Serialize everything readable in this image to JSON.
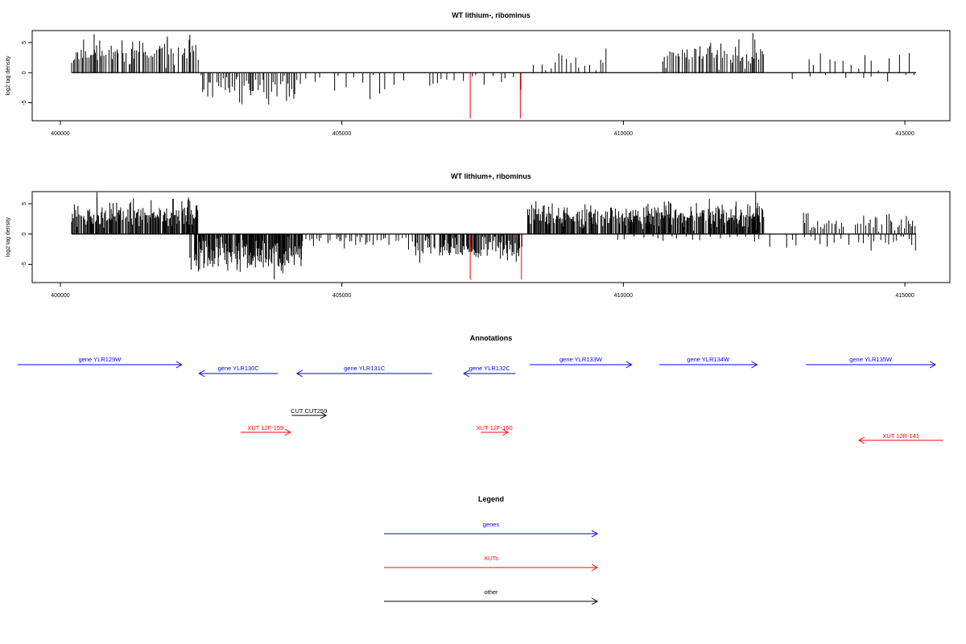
{
  "chart_data": [
    {
      "type": "bar",
      "title": "WT lithium-, ribominus",
      "ylabel": "log2 tag density",
      "xlim": [
        399500,
        415800
      ],
      "ylim": [
        -8,
        7
      ],
      "x_ticks": [
        400000,
        405000,
        410000,
        415000
      ],
      "x_tick_labels": [
        "400000",
        "405000",
        "410000",
        "415000"
      ],
      "y_ticks": [
        -5,
        0,
        5
      ],
      "y_tick_labels": [
        "-5",
        "0",
        "5"
      ],
      "baseline": {
        "x": [
          400200,
          415200
        ],
        "y": 0
      },
      "series": [
        {
          "color": "#000000",
          "segments": [
            {
              "strand": "+",
              "from": 400200,
              "to": 402450,
              "mean": 3.3,
              "spread": 1.3,
              "step": 28,
              "seed": 11
            },
            {
              "strand": "-",
              "from": 402500,
              "to": 404200,
              "mean": -2.6,
              "spread": 1.5,
              "step": 30,
              "seed": 12
            },
            {
              "strand": "-",
              "from": 404200,
              "to": 408200,
              "mean": -1.6,
              "spread": 1.4,
              "step": 115,
              "seed": 13
            },
            {
              "strand": "+",
              "from": 408400,
              "to": 409700,
              "mean": 2.0,
              "spread": 1.2,
              "step": 75,
              "seed": 14
            },
            {
              "strand": "+",
              "from": 410700,
              "to": 412500,
              "mean": 3.0,
              "spread": 1.3,
              "step": 30,
              "seed": 15
            },
            {
              "strand": "+",
              "from": 413300,
              "to": 415200,
              "mean": 1.8,
              "spread": 1.0,
              "step": 135,
              "seed": 16
            },
            {
              "strand": "-",
              "from": 413000,
              "to": 415200,
              "mean": -1.0,
              "spread": 0.5,
              "step": 260,
              "seed": 17
            }
          ],
          "bars": [
            {
              "x": 400600,
              "y": 6.4
            },
            {
              "x": 401900,
              "y": 6.0
            },
            {
              "x": 402300,
              "y": 6.3
            },
            {
              "x": 403700,
              "y": -5.3
            },
            {
              "x": 412300,
              "y": 6.6
            },
            {
              "x": 413500,
              "y": 3.2
            }
          ]
        },
        {
          "color": "#ff0000",
          "bars": [
            {
              "x": 407280,
              "y": -7.6
            },
            {
              "x": 408170,
              "y": -7.6
            }
          ]
        }
      ]
    },
    {
      "type": "bar",
      "title": "WT lithium+, ribominus",
      "ylabel": "log2 tag density",
      "xlim": [
        399500,
        415800
      ],
      "ylim": [
        -8,
        7
      ],
      "x_ticks": [
        400000,
        405000,
        410000,
        415000
      ],
      "x_tick_labels": [
        "400000",
        "405000",
        "410000",
        "415000"
      ],
      "y_ticks": [
        -5,
        0,
        5
      ],
      "y_tick_labels": [
        "-5",
        "0",
        "5"
      ],
      "baseline": {
        "x": [
          400200,
          415200
        ],
        "y": 0
      },
      "series": [
        {
          "color": "#000000",
          "segments": [
            {
              "strand": "+",
              "from": 400200,
              "to": 402450,
              "mean": 3.4,
              "spread": 1.3,
              "step": 14,
              "seed": 21
            },
            {
              "strand": "-",
              "from": 402300,
              "to": 404300,
              "mean": -3.5,
              "spread": 1.8,
              "step": 12,
              "seed": 22
            },
            {
              "strand": "-",
              "from": 404300,
              "to": 406300,
              "mean": -1.2,
              "spread": 0.7,
              "step": 50,
              "seed": 23
            },
            {
              "strand": "-",
              "from": 406300,
              "to": 408200,
              "mean": -2.5,
              "spread": 1.2,
              "step": 16,
              "seed": 24
            },
            {
              "strand": "+",
              "from": 408300,
              "to": 409800,
              "mean": 3.0,
              "spread": 1.2,
              "step": 14,
              "seed": 25
            },
            {
              "strand": "+",
              "from": 409800,
              "to": 412500,
              "mean": 3.1,
              "spread": 1.3,
              "step": 13,
              "seed": 26
            },
            {
              "strand": "-",
              "from": 409900,
              "to": 412600,
              "mean": -0.8,
              "spread": 0.4,
              "step": 130,
              "seed": 27
            },
            {
              "strand": "+",
              "from": 413200,
              "to": 415200,
              "mean": 1.9,
              "spread": 1.0,
              "step": 38,
              "seed": 28
            },
            {
              "strand": "-",
              "from": 412900,
              "to": 415200,
              "mean": -1.2,
              "spread": 0.8,
              "step": 85,
              "seed": 29
            }
          ],
          "bars": [
            {
              "x": 400650,
              "y": 6.9
            },
            {
              "x": 402300,
              "y": 5.5
            },
            {
              "x": 403800,
              "y": -7.5
            },
            {
              "x": 412350,
              "y": 6.9
            },
            {
              "x": 412600,
              "y": -2.1
            }
          ]
        },
        {
          "color": "#ff0000",
          "bars": [
            {
              "x": 407280,
              "y": -7.5
            },
            {
              "x": 408190,
              "y": -7.5
            }
          ]
        }
      ]
    }
  ],
  "annotations": {
    "title": "Annotations",
    "xlim": [
      400200,
      415200
    ],
    "items": [
      {
        "label": "gene YLR129W",
        "color": "#0000ff",
        "from": 399600,
        "to": 402450,
        "row": 0
      },
      {
        "label": "gene YLR130C",
        "color": "#0000ff",
        "from": 404120,
        "to": 402750,
        "row": 1
      },
      {
        "label": "gene YLR131C",
        "color": "#0000ff",
        "from": 406800,
        "to": 404450,
        "row": 1
      },
      {
        "label": "gene YLR132C",
        "color": "#0000ff",
        "from": 408250,
        "to": 407350,
        "row": 1
      },
      {
        "label": "gene YLR133W",
        "color": "#0000ff",
        "from": 408500,
        "to": 410270,
        "row": 0
      },
      {
        "label": "gene YLR134W",
        "color": "#0000ff",
        "from": 410750,
        "to": 412450,
        "row": 0
      },
      {
        "label": "gene YLR135W",
        "color": "#0000ff",
        "from": 413300,
        "to": 415550,
        "row": 0
      },
      {
        "label": "CUT CUT259",
        "color": "#000000",
        "from": 404360,
        "to": 404960,
        "row": 2
      },
      {
        "label": "XUT 12F-159",
        "color": "#ff0000",
        "from": 403470,
        "to": 404340,
        "row": 3
      },
      {
        "label": "XUT 12F-160",
        "color": "#ff0000",
        "from": 407650,
        "to": 408120,
        "row": 3
      },
      {
        "label": "XUT 12R-141",
        "color": "#ff0000",
        "from": 415680,
        "to": 414220,
        "row": 4
      }
    ]
  },
  "legend": {
    "title": "Legend",
    "items": [
      {
        "label": "genes",
        "color": "#0000ff"
      },
      {
        "label": "XUTs",
        "color": "#ff0000"
      },
      {
        "label": "other",
        "color": "#000000"
      }
    ]
  }
}
